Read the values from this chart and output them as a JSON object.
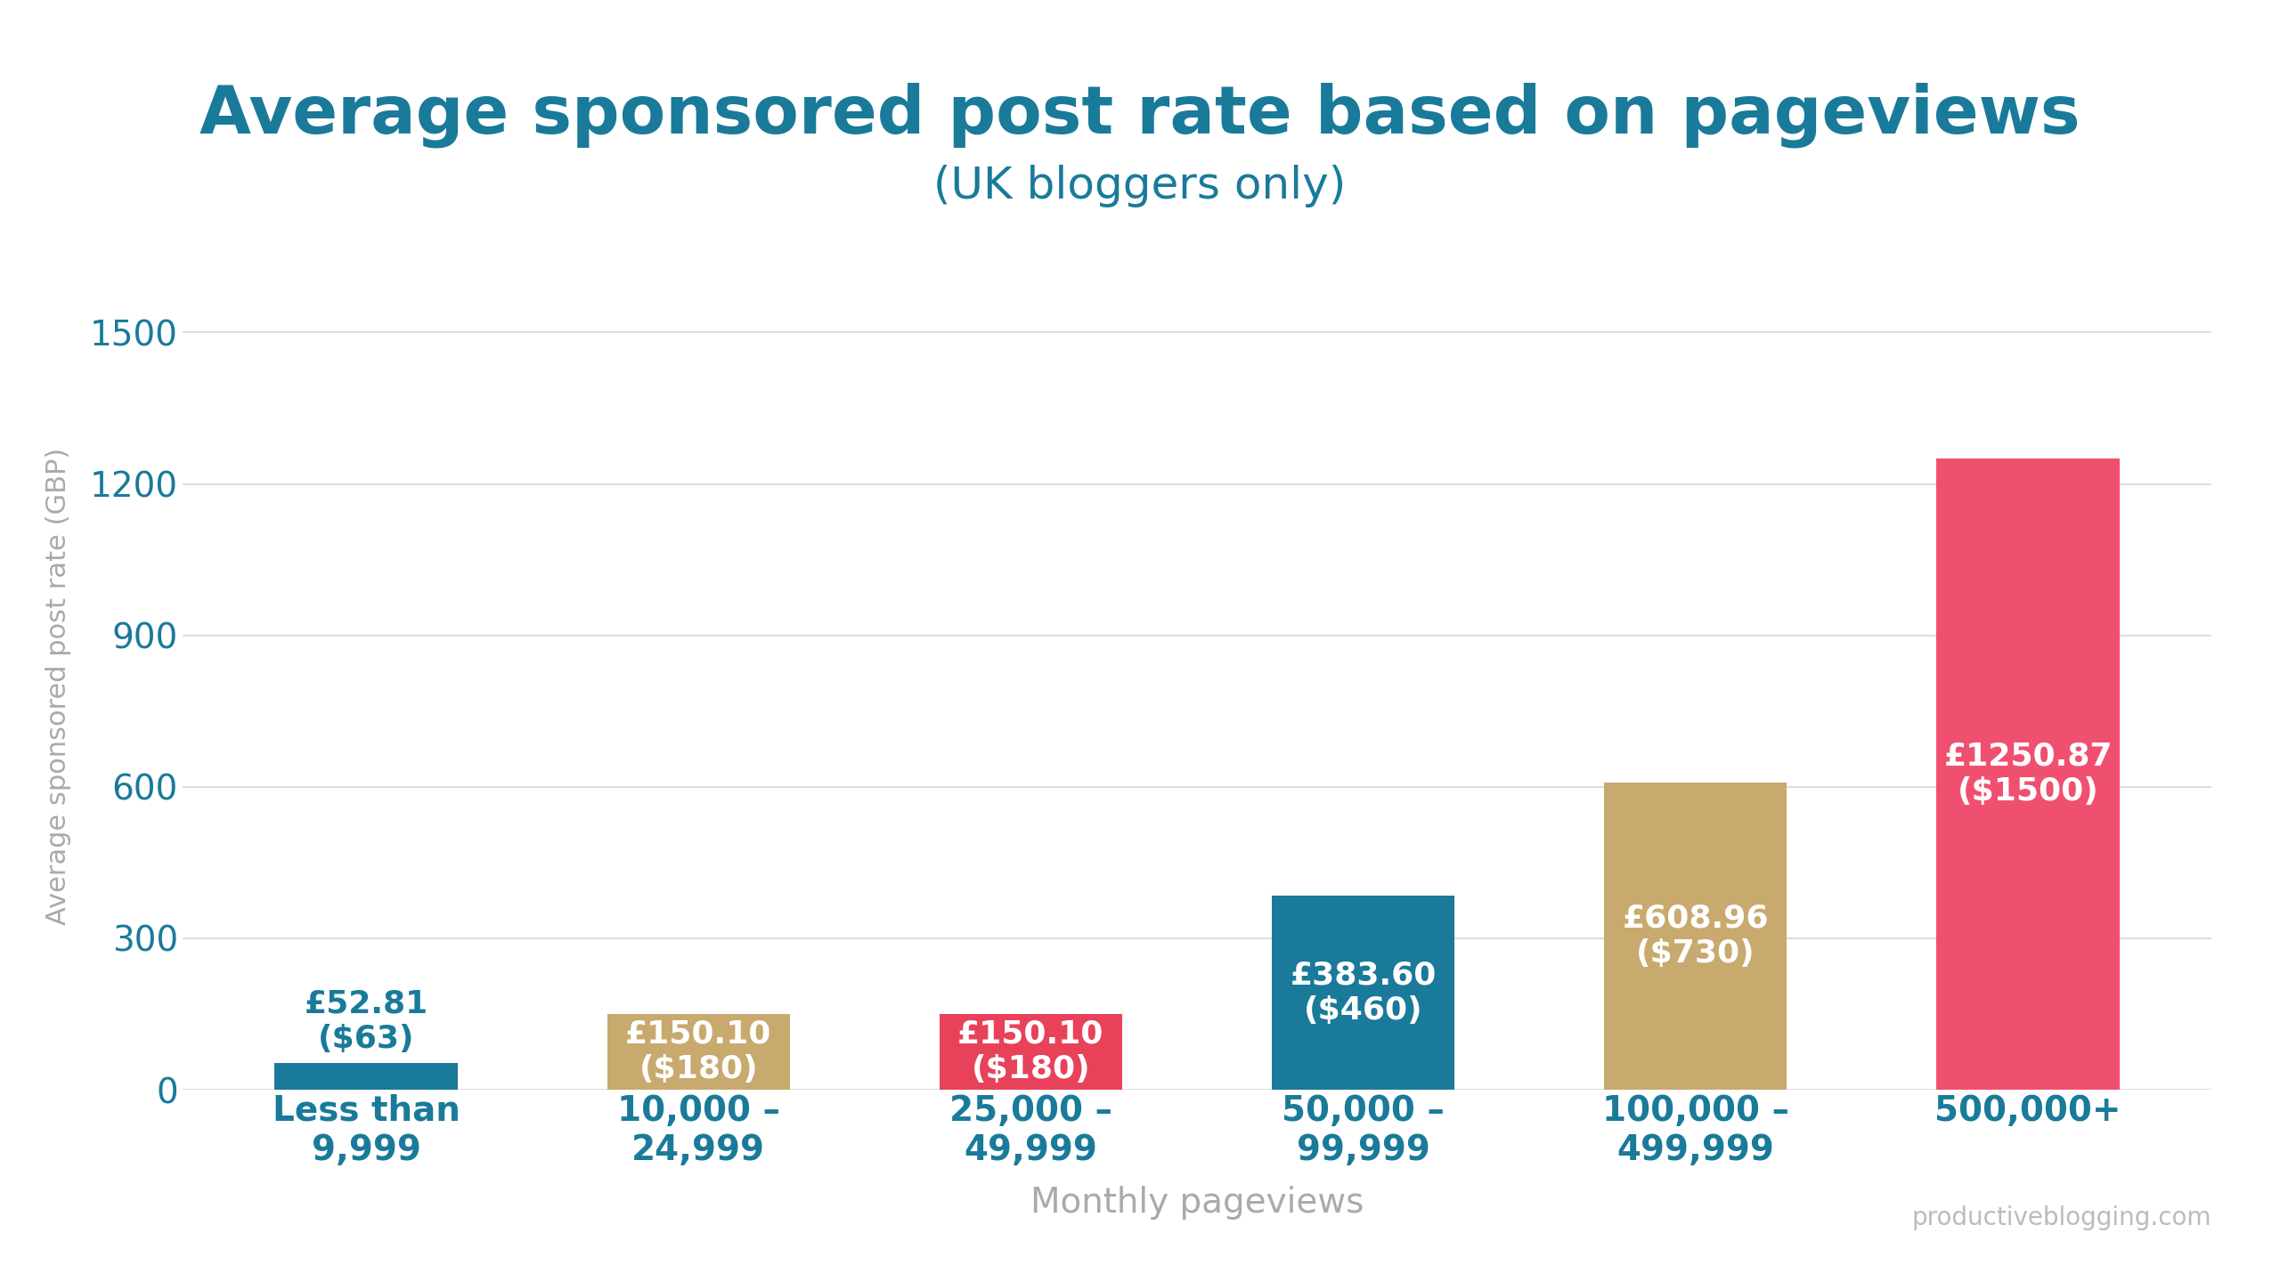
{
  "title_line1": "Average sponsored post rate based on pageviews",
  "title_line2": "(UK bloggers only)",
  "xlabel": "Monthly pageviews",
  "ylabel": "Average sponsored post rate (GBP)",
  "watermark": "productiveblogging.com",
  "categories": [
    "Less than\n9,999",
    "10,000 –\n24,999",
    "25,000 –\n49,999",
    "50,000 –\n99,999",
    "100,000 –\n499,999",
    "500,000+"
  ],
  "values": [
    52.81,
    150.1,
    150.1,
    383.6,
    608.96,
    1250.87
  ],
  "bar_colors": [
    "#1a7a9a",
    "#c8a96e",
    "#e8425a",
    "#1a7a9a",
    "#c8a96e",
    "#f05070"
  ],
  "bar_labels": [
    "£52.81\n($63)",
    "£150.10\n($180)",
    "£150.10\n($180)",
    "£383.60\n($460)",
    "£608.96\n($730)",
    "£1250.87\n($1500)"
  ],
  "label_colors": [
    "#1a7a9a",
    "white",
    "white",
    "white",
    "white",
    "white"
  ],
  "label_above": [
    true,
    false,
    false,
    false,
    false,
    false
  ],
  "ylim": [
    0,
    1600
  ],
  "yticks": [
    0,
    300,
    600,
    900,
    1200,
    1500
  ],
  "title_color": "#1a7a9a",
  "subtitle_color": "#1a7a9a",
  "axis_label_color": "#aaaaaa",
  "tick_label_color": "#1a7a9a",
  "watermark_color": "#bbbbbb",
  "background_color": "#ffffff",
  "grid_color": "#dddddd",
  "title_fontsize": 54,
  "subtitle_fontsize": 36,
  "xlabel_fontsize": 28,
  "ylabel_fontsize": 22,
  "tick_fontsize": 28,
  "bar_label_fontsize": 26,
  "watermark_fontsize": 20
}
